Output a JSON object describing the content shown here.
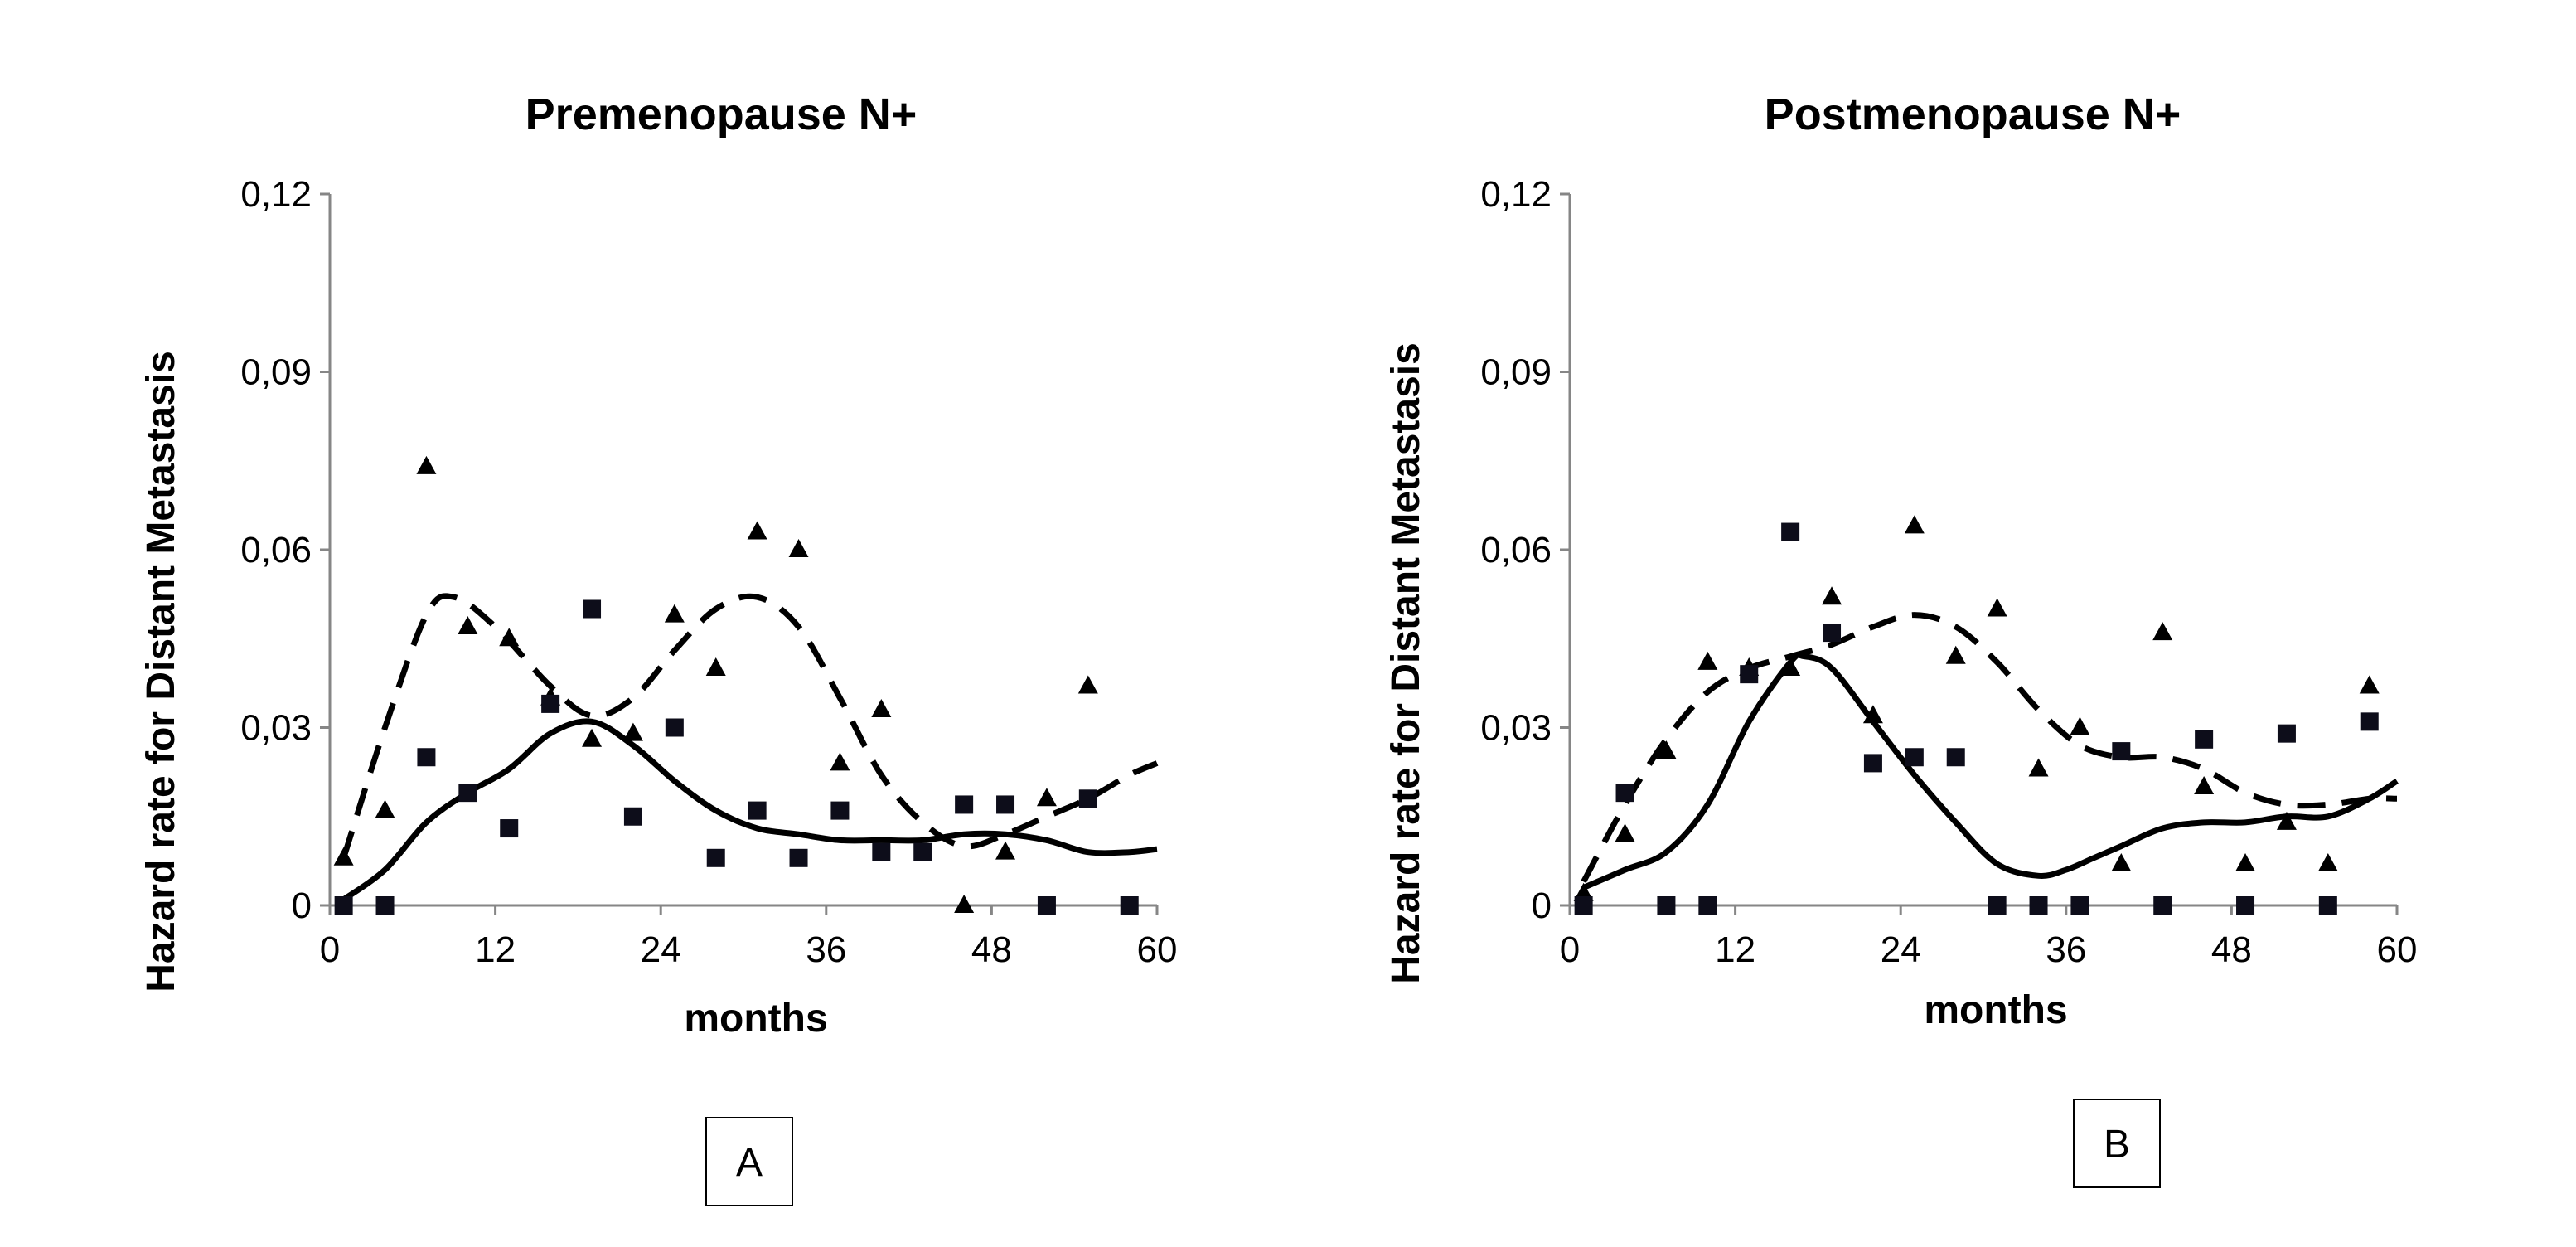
{
  "colors": {
    "background": "#ffffff",
    "ink": "#000000",
    "axis": "#868686",
    "square_marker": "#0d0d1a"
  },
  "chart_data": [
    {
      "type": "scatter",
      "panel": "A",
      "title": "Premenopause  N+",
      "xlabel": "months",
      "ylabel": "Hazard rate for Distant Metastasis",
      "xlim": [
        0,
        60
      ],
      "ylim": [
        0,
        0.12
      ],
      "xticks": [
        0,
        12,
        24,
        36,
        48,
        60
      ],
      "xtick_labels": [
        "0",
        "12",
        "24",
        "36",
        "48",
        "60"
      ],
      "yticks": [
        0,
        0.03,
        0.06,
        0.09,
        0.12
      ],
      "ytick_labels": [
        "0",
        "0,03",
        "0,06",
        "0,09",
        "0,12"
      ],
      "series": [
        {
          "name": "triangles",
          "marker": "triangle",
          "x": [
            1,
            4,
            7,
            10,
            13,
            16,
            19,
            22,
            25,
            28,
            31,
            34,
            37,
            40,
            46,
            49,
            52,
            55
          ],
          "y": [
            0.008,
            0.016,
            0.074,
            0.047,
            0.045,
            0.035,
            0.028,
            0.029,
            0.049,
            0.04,
            0.063,
            0.06,
            0.024,
            0.033,
            0.0,
            0.009,
            0.018,
            0.037
          ]
        },
        {
          "name": "squares",
          "marker": "square",
          "x": [
            1,
            4,
            7,
            10,
            13,
            16,
            19,
            22,
            25,
            28,
            31,
            34,
            37,
            40,
            43,
            46,
            49,
            52,
            55,
            58
          ],
          "y": [
            0.0,
            0.0,
            0.025,
            0.019,
            0.013,
            0.034,
            0.05,
            0.015,
            0.03,
            0.008,
            0.016,
            0.008,
            0.016,
            0.009,
            0.009,
            0.017,
            0.017,
            0.0,
            0.018,
            0.0
          ]
        },
        {
          "name": "dashed curve",
          "style": "dashed",
          "x": [
            1,
            4,
            7,
            9,
            12,
            16,
            19,
            22,
            25,
            28,
            31,
            34,
            37,
            40,
            43,
            46,
            49,
            52,
            55,
            58,
            60
          ],
          "y": [
            0.008,
            0.03,
            0.049,
            0.052,
            0.047,
            0.037,
            0.032,
            0.035,
            0.043,
            0.05,
            0.052,
            0.047,
            0.035,
            0.022,
            0.014,
            0.01,
            0.012,
            0.015,
            0.018,
            0.022,
            0.024
          ]
        },
        {
          "name": "solid curve",
          "style": "solid",
          "x": [
            1,
            4,
            7,
            10,
            13,
            16,
            19,
            22,
            25,
            28,
            31,
            34,
            37,
            40,
            43,
            46,
            49,
            52,
            55,
            58,
            60
          ],
          "y": [
            0.001,
            0.006,
            0.014,
            0.019,
            0.023,
            0.029,
            0.031,
            0.027,
            0.021,
            0.016,
            0.013,
            0.012,
            0.011,
            0.011,
            0.011,
            0.012,
            0.012,
            0.011,
            0.009,
            0.009,
            0.0095
          ]
        }
      ]
    },
    {
      "type": "scatter",
      "panel": "B",
      "title": "Postmenopause  N+",
      "xlabel": "months",
      "ylabel": "Hazard rate for Distant Metastasis",
      "xlim": [
        0,
        60
      ],
      "ylim": [
        0,
        0.12
      ],
      "xticks": [
        0,
        12,
        24,
        36,
        48,
        60
      ],
      "xtick_labels": [
        "0",
        "12",
        "24",
        "36",
        "48",
        "60"
      ],
      "yticks": [
        0,
        0.03,
        0.06,
        0.09,
        0.12
      ],
      "ytick_labels": [
        "0",
        "0,03",
        "0,06",
        "0,09",
        "0,12"
      ],
      "series": [
        {
          "name": "triangles",
          "marker": "triangle",
          "x": [
            1,
            4,
            7,
            10,
            13,
            16,
            19,
            22,
            25,
            28,
            31,
            34,
            37,
            40,
            43,
            46,
            49,
            52,
            55,
            58
          ],
          "y": [
            0.002,
            0.012,
            0.026,
            0.041,
            0.04,
            0.04,
            0.052,
            0.032,
            0.064,
            0.042,
            0.05,
            0.023,
            0.03,
            0.007,
            0.046,
            0.02,
            0.007,
            0.014,
            0.007,
            0.037
          ]
        },
        {
          "name": "squares",
          "marker": "square",
          "x": [
            1,
            4,
            7,
            10,
            13,
            16,
            19,
            22,
            25,
            28,
            31,
            34,
            37,
            40,
            43,
            46,
            49,
            52,
            55,
            58
          ],
          "y": [
            0.0,
            0.019,
            0.0,
            0.0,
            0.039,
            0.063,
            0.046,
            0.024,
            0.025,
            0.025,
            0.0,
            0.0,
            0.0,
            0.026,
            0.0,
            0.028,
            0.0,
            0.029,
            0.0,
            0.031
          ]
        },
        {
          "name": "dashed curve",
          "style": "dashed",
          "x": [
            1,
            4,
            7,
            10,
            13,
            16,
            19,
            22,
            25,
            28,
            31,
            34,
            37,
            40,
            43,
            46,
            49,
            52,
            55,
            58,
            60
          ],
          "y": [
            0.004,
            0.017,
            0.028,
            0.036,
            0.04,
            0.042,
            0.044,
            0.047,
            0.049,
            0.047,
            0.041,
            0.033,
            0.027,
            0.025,
            0.025,
            0.023,
            0.019,
            0.017,
            0.017,
            0.018,
            0.018
          ]
        },
        {
          "name": "solid curve",
          "style": "solid",
          "x": [
            1,
            4,
            7,
            10,
            13,
            16,
            17,
            19,
            22,
            25,
            28,
            31,
            34,
            36,
            38,
            40,
            43,
            46,
            49,
            52,
            55,
            58,
            60
          ],
          "y": [
            0.003,
            0.006,
            0.009,
            0.017,
            0.031,
            0.041,
            0.042,
            0.04,
            0.031,
            0.022,
            0.014,
            0.007,
            0.005,
            0.006,
            0.008,
            0.01,
            0.013,
            0.014,
            0.014,
            0.015,
            0.015,
            0.018,
            0.021
          ]
        }
      ]
    }
  ],
  "panel_labels": [
    "A",
    "B"
  ]
}
